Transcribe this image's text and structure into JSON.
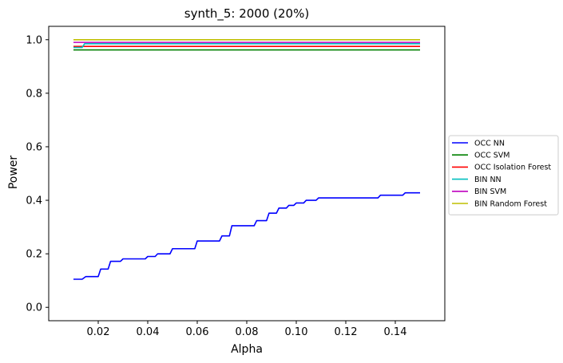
{
  "chart_data": {
    "type": "line",
    "title": "synth_5: 2000 (20%)",
    "xlabel": "Alpha",
    "ylabel": "Power",
    "xlim": [
      0.0,
      0.16
    ],
    "ylim": [
      -0.05,
      1.05
    ],
    "xticks": [
      0.02,
      0.04,
      0.06,
      0.08,
      0.1,
      0.12,
      0.14
    ],
    "xtick_labels": [
      "0.02",
      "0.04",
      "0.06",
      "0.08",
      "0.10",
      "0.12",
      "0.14"
    ],
    "yticks": [
      0.0,
      0.2,
      0.4,
      0.6,
      0.8,
      1.0
    ],
    "ytick_labels": [
      "0.0",
      "0.2",
      "0.4",
      "0.6",
      "0.8",
      "1.0"
    ],
    "grid": false,
    "legend_position": "right",
    "series": [
      {
        "name": "OCC NN",
        "color": "#0000ff",
        "x": [
          0.01,
          0.0125,
          0.0135,
          0.015,
          0.016,
          0.018,
          0.019,
          0.02,
          0.021,
          0.023,
          0.024,
          0.025,
          0.026,
          0.028,
          0.029,
          0.03,
          0.031,
          0.039,
          0.04,
          0.041,
          0.043,
          0.044,
          0.045,
          0.046,
          0.049,
          0.05,
          0.051,
          0.059,
          0.06,
          0.061,
          0.068,
          0.069,
          0.07,
          0.072,
          0.073,
          0.074,
          0.075,
          0.083,
          0.084,
          0.085,
          0.088,
          0.089,
          0.09,
          0.092,
          0.093,
          0.094,
          0.096,
          0.097,
          0.099,
          0.1,
          0.102,
          0.103,
          0.104,
          0.105,
          0.108,
          0.109,
          0.11,
          0.112,
          0.113,
          0.114,
          0.115,
          0.133,
          0.134,
          0.135,
          0.143,
          0.144,
          0.145,
          0.15
        ],
        "y": [
          0.105,
          0.105,
          0.105,
          0.115,
          0.115,
          0.115,
          0.115,
          0.115,
          0.143,
          0.143,
          0.143,
          0.172,
          0.172,
          0.172,
          0.172,
          0.181,
          0.181,
          0.181,
          0.19,
          0.19,
          0.19,
          0.2,
          0.2,
          0.2,
          0.2,
          0.219,
          0.219,
          0.219,
          0.248,
          0.248,
          0.248,
          0.248,
          0.267,
          0.267,
          0.267,
          0.305,
          0.305,
          0.305,
          0.324,
          0.324,
          0.324,
          0.352,
          0.352,
          0.352,
          0.371,
          0.371,
          0.371,
          0.381,
          0.381,
          0.39,
          0.39,
          0.39,
          0.4,
          0.4,
          0.4,
          0.409,
          0.409,
          0.409,
          0.409,
          0.409,
          0.409,
          0.409,
          0.419,
          0.419,
          0.419,
          0.428,
          0.428,
          0.428
        ]
      },
      {
        "name": "OCC SVM",
        "color": "#008000",
        "x": [
          0.01,
          0.15
        ],
        "y": [
          0.962,
          0.962
        ]
      },
      {
        "name": "OCC Isolation Forest",
        "color": "#ff0000",
        "x": [
          0.01,
          0.15
        ],
        "y": [
          0.975,
          0.975
        ]
      },
      {
        "name": "BIN NN",
        "color": "#00bfbf",
        "x": [
          0.01,
          0.0135,
          0.0145,
          0.15
        ],
        "y": [
          0.971,
          0.971,
          0.985,
          0.985
        ]
      },
      {
        "name": "BIN SVM",
        "color": "#bf00bf",
        "x": [
          0.01,
          0.15
        ],
        "y": [
          0.99,
          0.99
        ]
      },
      {
        "name": "BIN Random Forest",
        "color": "#bfbf00",
        "x": [
          0.01,
          0.15
        ],
        "y": [
          1.0,
          1.0
        ]
      }
    ]
  }
}
